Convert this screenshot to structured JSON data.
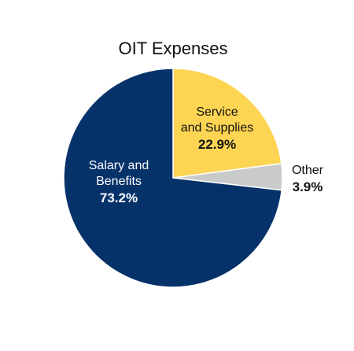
{
  "chart_data": {
    "type": "pie",
    "title": "OIT Expenses",
    "slices": [
      {
        "label_lines": [
          "Service",
          "and Supplies"
        ],
        "pct_label": "22.9%",
        "value": 22.9,
        "color": "#fdd553",
        "text_color": "#111111"
      },
      {
        "label_lines": [
          "Other"
        ],
        "pct_label": "3.9%",
        "value": 3.9,
        "color": "#c9caca",
        "text_color": "#111111"
      },
      {
        "label_lines": [
          "Salary and",
          "Benefits"
        ],
        "pct_label": "73.2%",
        "value": 73.2,
        "color": "#06326a",
        "text_color": "#ffffff"
      }
    ]
  }
}
